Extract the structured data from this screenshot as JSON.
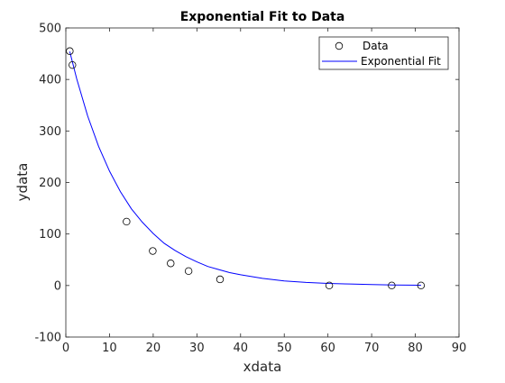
{
  "chart_data": {
    "type": "scatter",
    "title": "Exponential Fit to Data",
    "xlabel": "xdata",
    "ylabel": "ydata",
    "xlim": [
      0,
      90
    ],
    "ylim": [
      -100,
      500
    ],
    "xticks": [
      0,
      10,
      20,
      30,
      40,
      50,
      60,
      70,
      80,
      90
    ],
    "yticks": [
      -100,
      0,
      100,
      200,
      300,
      400,
      500
    ],
    "grid": false,
    "legend_position": "top-right",
    "series": [
      {
        "name": "Data",
        "kind": "markers",
        "marker": "circle",
        "color": "#000000",
        "points": [
          {
            "x": 0.9,
            "y": 455
          },
          {
            "x": 1.5,
            "y": 428
          },
          {
            "x": 13.9,
            "y": 124
          },
          {
            "x": 19.9,
            "y": 67
          },
          {
            "x": 24.0,
            "y": 43
          },
          {
            "x": 28.1,
            "y": 28
          },
          {
            "x": 35.3,
            "y": 12
          },
          {
            "x": 60.3,
            "y": 0
          },
          {
            "x": 74.6,
            "y": 0
          },
          {
            "x": 81.3,
            "y": 0
          }
        ]
      },
      {
        "name": "Exponential Fit",
        "kind": "line",
        "color": "#0000ff",
        "points": [
          {
            "x": 0.9,
            "y": 454
          },
          {
            "x": 2.5,
            "y": 401
          },
          {
            "x": 5,
            "y": 329
          },
          {
            "x": 7.5,
            "y": 270
          },
          {
            "x": 10,
            "y": 222
          },
          {
            "x": 12.5,
            "y": 182
          },
          {
            "x": 15,
            "y": 149
          },
          {
            "x": 17.5,
            "y": 123
          },
          {
            "x": 20,
            "y": 101
          },
          {
            "x": 22.5,
            "y": 82
          },
          {
            "x": 25,
            "y": 68
          },
          {
            "x": 27.5,
            "y": 56
          },
          {
            "x": 30,
            "y": 46
          },
          {
            "x": 32.5,
            "y": 37
          },
          {
            "x": 35,
            "y": 31
          },
          {
            "x": 37.5,
            "y": 25
          },
          {
            "x": 40,
            "y": 21
          },
          {
            "x": 45,
            "y": 14
          },
          {
            "x": 50,
            "y": 9
          },
          {
            "x": 55,
            "y": 6
          },
          {
            "x": 60,
            "y": 4
          },
          {
            "x": 65,
            "y": 3
          },
          {
            "x": 70,
            "y": 2
          },
          {
            "x": 75,
            "y": 1
          },
          {
            "x": 81.3,
            "y": 0.5
          }
        ]
      }
    ]
  }
}
